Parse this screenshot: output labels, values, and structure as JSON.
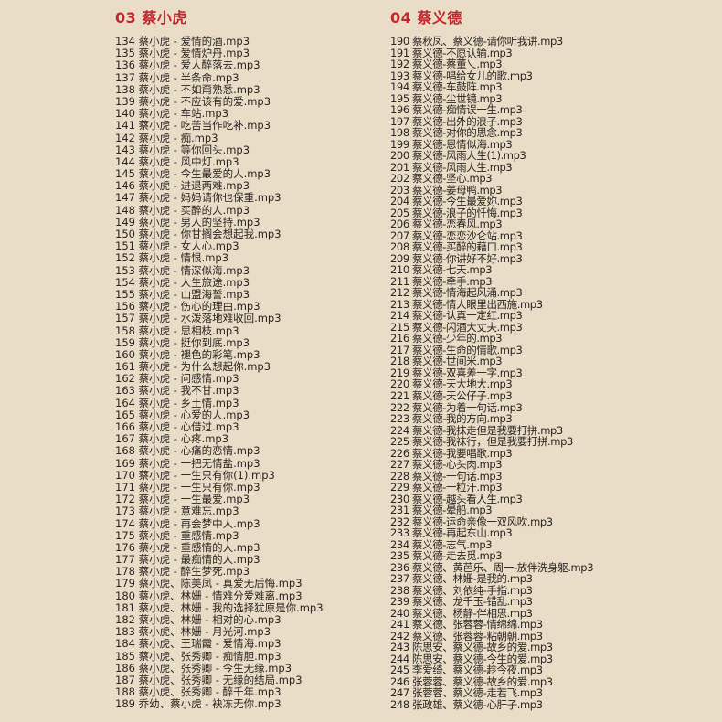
{
  "sections": [
    {
      "title": "03 蔡小虎",
      "items": [
        "134 蔡小虎 - 爱情的酒.mp3",
        "135 蔡小虎 - 爱情炉丹.mp3",
        "136 蔡小虎 - 爱人醉落去.mp3",
        "137 蔡小虎 - 半条命.mp3",
        "138 蔡小虎 - 不如甭熟悉.mp3",
        "139 蔡小虎 - 不应该有的爱.mp3",
        "140 蔡小虎 - 车站.mp3",
        "141 蔡小虎 - 吃苦当作吃补.mp3",
        "142 蔡小虎 - 痴.mp3",
        "143 蔡小虎 - 等你回头.mp3",
        "144 蔡小虎 - 风中灯.mp3",
        "145 蔡小虎 - 今生最爱的人.mp3",
        "146 蔡小虎 - 进退两难.mp3",
        "147 蔡小虎 - 妈妈请你也保重.mp3",
        "148 蔡小虎 - 买醉的人.mp3",
        "149 蔡小虎 - 男人的坚持.mp3",
        "150 蔡小虎 - 你甘搁会想起我.mp3",
        "151 蔡小虎 - 女人心.mp3",
        "152 蔡小虎 - 情恨.mp3",
        "153 蔡小虎 - 情深似海.mp3",
        "154 蔡小虎 - 人生旅途.mp3",
        "155 蔡小虎 - 山盟海誓.mp3",
        "156 蔡小虎 - 伤心的理由.mp3",
        "157 蔡小虎 - 水泼落地难收回.mp3",
        "158 蔡小虎 - 思相枝.mp3",
        "159 蔡小虎 - 挺你到底.mp3",
        "160 蔡小虎 - 褪色的彩笔.mp3",
        "161 蔡小虎 - 为什么想起你.mp3",
        "162 蔡小虎 - 问感情.mp3",
        "163 蔡小虎 - 我不甘.mp3",
        "164 蔡小虎 - 乡土情.mp3",
        "165 蔡小虎 - 心爱的人.mp3",
        "166 蔡小虎 - 心借过.mp3",
        "167 蔡小虎 - 心疼.mp3",
        "168 蔡小虎 - 心痛的恋情.mp3",
        "169 蔡小虎 - 一把无情盐.mp3",
        "170 蔡小虎 - 一生只有你(1).mp3",
        "171 蔡小虎 - 一生只有你.mp3",
        "172 蔡小虎 - 一生最爱.mp3",
        "173 蔡小虎 - 意难忘.mp3",
        "174 蔡小虎 - 再会梦中人.mp3",
        "175 蔡小虎 - 重感情.mp3",
        "176 蔡小虎 - 重感情的人.mp3",
        "177 蔡小虎 - 最痴情的人.mp3",
        "178 蔡小虎 - 醉生梦死.mp3",
        "179 蔡小虎、陈美凤 - 真爱无后悔.mp3",
        "180 蔡小虎、林姗 - 情难分爱难离.mp3",
        "181 蔡小虎、林姗 - 我的选择犹原是你.mp3",
        "182 蔡小虎、林姗 - 相对的心.mp3",
        "183 蔡小虎、林姗 - 月光河.mp3",
        "184 蔡小虎、王瑞霞 - 爱情海.mp3",
        "185 蔡小虎、张秀卿 - 痴情胆.mp3",
        "186 蔡小虎、张秀卿 - 今生无缘.mp3",
        "187 蔡小虎、张秀卿 - 无缘的结局.mp3",
        "188 蔡小虎、张秀卿 - 醉千年.mp3",
        "189 乔幼、蔡小虎 - 袂冻无你.mp3"
      ]
    },
    {
      "title": "04 蔡义德",
      "items": [
        "190 蔡秋凤、蔡义德-请你听我讲.mp3",
        "191 蔡义德-不愿认输.mp3",
        "192 蔡义德-蔡董乀.mp3",
        "193 蔡义德-唱给女儿的歌.mp3",
        "194 蔡义德-车鼓阵.mp3",
        "195 蔡义德-尘世镜.mp3",
        "196 蔡义德-痴情误一生.mp3",
        "197 蔡义德-出外的浪子.mp3",
        "198 蔡义德-对你的思念.mp3",
        "199 蔡义德-恩情似海.mp3",
        "200 蔡义德-风雨人生(1).mp3",
        "201 蔡义德-风雨人生.mp3",
        "202 蔡义德-坚心.mp3",
        "203 蔡义德-姜母鸭.mp3",
        "204 蔡义德-今生最爱妳.mp3",
        "205 蔡义德-浪子的忏悔.mp3",
        "206 蔡义德-恋春风.mp3",
        "207 蔡义德-恋恋沙仑站.mp3",
        "208 蔡义德-买醉的藉口.mp3",
        "209 蔡义德-你讲好不好.mp3",
        "210 蔡义德-七天.mp3",
        "211 蔡义德-牵手.mp3",
        "212 蔡义德-情海起风涌.mp3",
        "213 蔡义德-情人眼里出西施.mp3",
        "214 蔡义德-认真一定红.mp3",
        "215 蔡义德-闪酒大丈夫.mp3",
        "216 蔡义德-少年的.mp3",
        "217 蔡义德-生命的情歌.mp3",
        "218 蔡义德-世间米.mp3",
        "219 蔡义德-双喜差一字.mp3",
        "220 蔡义德-天大地大.mp3",
        "221 蔡义德-天公仔子.mp3",
        "222 蔡义德-为着一句话.mp3",
        "223 蔡义德-我的方向.mp3",
        "224 蔡义德-我抹走但是我要打拼.mp3",
        "225 蔡义德-我袜行，但是我要打拼.mp3",
        "226 蔡义德-我要唱歌.mp3",
        "227 蔡义德-心头肉.mp3",
        "228 蔡义德-一句话.mp3",
        "229 蔡义德-一粒汗.mp3",
        "230 蔡义德-越头看人生.mp3",
        "231 蔡义德-晕船.mp3",
        "232 蔡义德-运命亲像一双风吹.mp3",
        "233 蔡义德-再起东山.mp3",
        "234 蔡义德-志气.mp3",
        "235 蔡义德-走去觅.mp3",
        "236 蔡义德、黄芭乐、周一-放伴洗身躯.mp3",
        "237 蔡义德、林姗-是我的.mp3",
        "238 蔡义德、刘依纯-手指.mp3",
        "239 蔡义德、龙千玉-错乱.mp3",
        "240 蔡义德、杨静-伴相思.mp3",
        "241 蔡义德、张蓉蓉-情绵绵.mp3",
        "242 蔡义德、张蓉蓉-粘朝朝.mp3",
        "243 陈思安、蔡义德-故乡的爱.mp3",
        "244 陈思安、蔡义德-今生的爱.mp3",
        "245 李爱绮、蔡义德-趁今夜.mp3",
        "246 张蓉蓉、蔡义德-故乡的爱.mp3",
        "247 张蓉蓉、蔡义德-走若飞.mp3",
        "248 张政雄、蔡义德-心肝子.mp3"
      ]
    }
  ],
  "colors": {
    "background": "#e9ddc7",
    "heading": "#c1272d",
    "text": "#2a2420"
  }
}
